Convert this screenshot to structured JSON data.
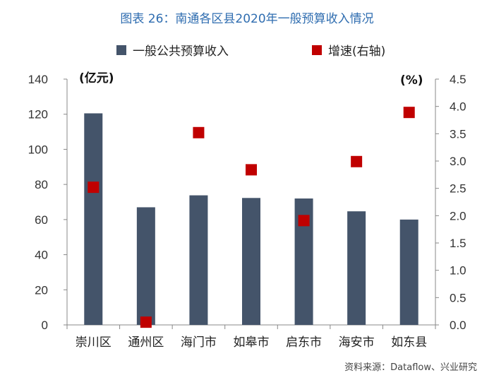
{
  "chart_data": {
    "type": "bar",
    "title": "图表 26：南通各区县2020年一般预算收入情况",
    "categories": [
      "崇川区",
      "通州区",
      "海门市",
      "如皋市",
      "启东市",
      "海安市",
      "如东县"
    ],
    "series": [
      {
        "name": "一般公共预算收入",
        "type": "bar",
        "axis": "left",
        "values": [
          120.5,
          67,
          73.8,
          72.3,
          72,
          64.7,
          60
        ],
        "color": "#44546a"
      },
      {
        "name": "增速(右轴)",
        "type": "scatter",
        "axis": "right",
        "values": [
          2.52,
          0.05,
          3.52,
          2.84,
          1.91,
          2.99,
          3.89
        ],
        "color": "#c00000"
      }
    ],
    "y_left": {
      "unit": "(亿元)",
      "range": [
        0,
        140
      ],
      "ticks": [
        "0",
        "20",
        "40",
        "60",
        "80",
        "100",
        "120",
        "140"
      ]
    },
    "y_right": {
      "unit": "(%)",
      "range": [
        0,
        4.5
      ],
      "ticks": [
        "0.0",
        "0.5",
        "1.0",
        "1.5",
        "2.0",
        "2.5",
        "3.0",
        "3.5",
        "4.0",
        "4.5"
      ]
    },
    "legend_position": "top",
    "grid": false
  },
  "source": "资料来源：Dataflow、兴业研究"
}
